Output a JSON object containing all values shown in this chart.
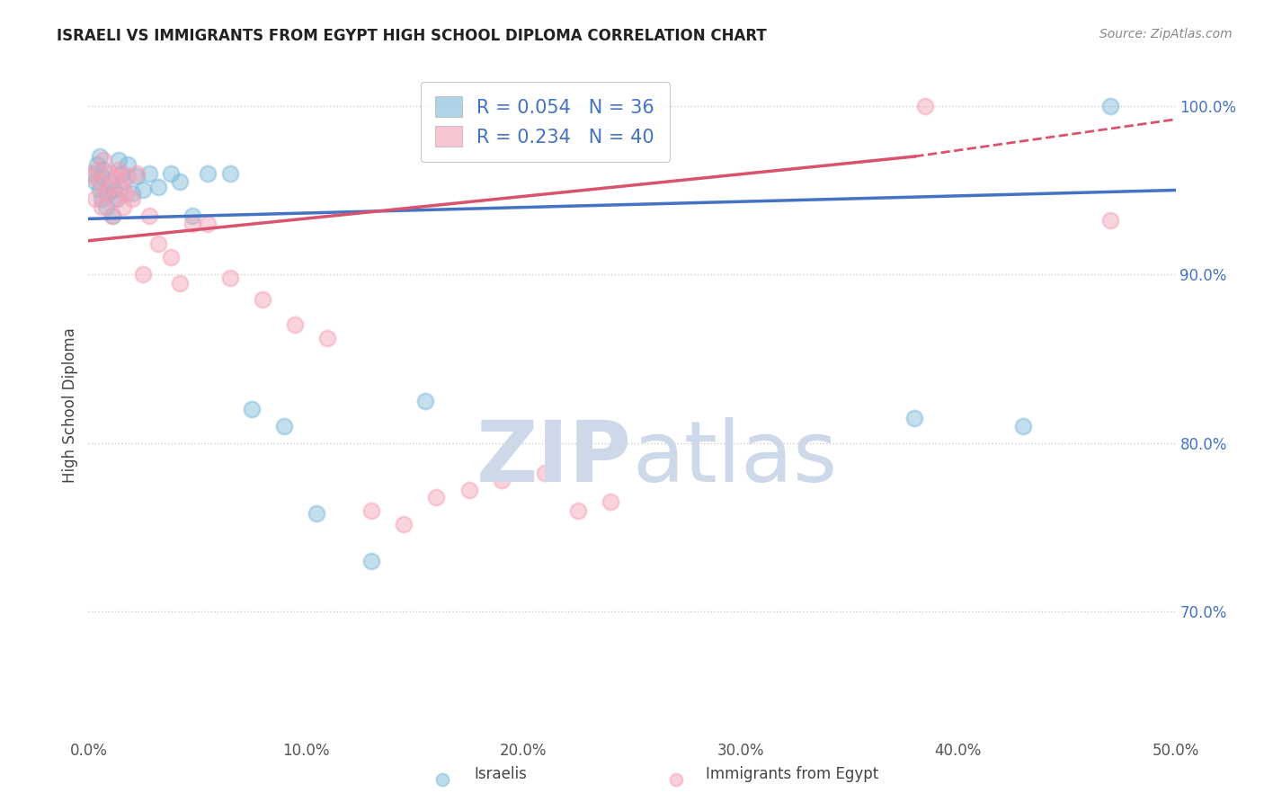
{
  "title": "ISRAELI VS IMMIGRANTS FROM EGYPT HIGH SCHOOL DIPLOMA CORRELATION CHART",
  "source": "Source: ZipAtlas.com",
  "ylabel": "High School Diploma",
  "xmin": 0.0,
  "xmax": 0.5,
  "ymin": 0.625,
  "ymax": 1.02,
  "yticks": [
    0.7,
    0.8,
    0.9,
    1.0
  ],
  "ytick_labels": [
    "70.0%",
    "80.0%",
    "90.0%",
    "100.0%"
  ],
  "xticks": [
    0.0,
    0.1,
    0.2,
    0.3,
    0.4,
    0.5
  ],
  "xtick_labels": [
    "0.0%",
    "10.0%",
    "20.0%",
    "30.0%",
    "40.0%",
    "50.0%"
  ],
  "legend_r_israeli": "R = 0.054",
  "legend_n_israeli": "N = 36",
  "legend_r_egypt": "R = 0.234",
  "legend_n_egypt": "N = 40",
  "israeli_color": "#7ab8d9",
  "egypt_color": "#f4a0b5",
  "israeli_line_color": "#4472c4",
  "egypt_line_color": "#d9536e",
  "background_color": "#ffffff",
  "grid_color": "#cccccc",
  "watermark_color": "#cdd8e8",
  "israelis_x": [
    0.002,
    0.003,
    0.004,
    0.005,
    0.005,
    0.006,
    0.006,
    0.007,
    0.008,
    0.009,
    0.01,
    0.011,
    0.012,
    0.013,
    0.014,
    0.015,
    0.016,
    0.018,
    0.02,
    0.022,
    0.025,
    0.028,
    0.032,
    0.038,
    0.042,
    0.048,
    0.055,
    0.065,
    0.075,
    0.09,
    0.105,
    0.13,
    0.155,
    0.38,
    0.43,
    0.47
  ],
  "israelis_y": [
    0.96,
    0.955,
    0.965,
    0.97,
    0.95,
    0.958,
    0.945,
    0.962,
    0.94,
    0.948,
    0.955,
    0.935,
    0.95,
    0.945,
    0.968,
    0.96,
    0.955,
    0.965,
    0.948,
    0.958,
    0.95,
    0.96,
    0.952,
    0.96,
    0.955,
    0.935,
    0.96,
    0.96,
    0.82,
    0.81,
    0.758,
    0.73,
    0.825,
    0.815,
    0.81,
    1.0
  ],
  "egypt_x": [
    0.002,
    0.003,
    0.004,
    0.005,
    0.006,
    0.007,
    0.008,
    0.009,
    0.01,
    0.011,
    0.012,
    0.013,
    0.014,
    0.015,
    0.016,
    0.017,
    0.018,
    0.02,
    0.022,
    0.025,
    0.028,
    0.032,
    0.038,
    0.042,
    0.048,
    0.055,
    0.065,
    0.08,
    0.095,
    0.11,
    0.13,
    0.145,
    0.16,
    0.175,
    0.19,
    0.21,
    0.225,
    0.24,
    0.385,
    0.47
  ],
  "egypt_y": [
    0.958,
    0.945,
    0.962,
    0.955,
    0.94,
    0.968,
    0.948,
    0.952,
    0.96,
    0.935,
    0.945,
    0.958,
    0.962,
    0.952,
    0.94,
    0.948,
    0.958,
    0.945,
    0.96,
    0.9,
    0.935,
    0.918,
    0.91,
    0.895,
    0.93,
    0.93,
    0.898,
    0.885,
    0.87,
    0.862,
    0.76,
    0.752,
    0.768,
    0.772,
    0.778,
    0.782,
    0.76,
    0.765,
    1.0,
    0.932
  ]
}
